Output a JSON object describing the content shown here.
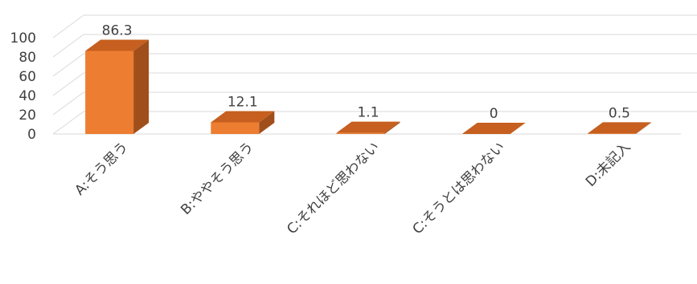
{
  "chart_data": {
    "type": "bar",
    "style": "3d-column",
    "categories": [
      "A:そう思う",
      "B:ややそう思う",
      "C:それほど思わない",
      "C:そうとは思わない",
      "D:未記入"
    ],
    "values": [
      86.3,
      12.1,
      1.1,
      0,
      0.5
    ],
    "data_labels": [
      "86.3",
      "12.1",
      "1.1",
      "0",
      "0.5"
    ],
    "yticks": [
      "0",
      "20",
      "40",
      "60",
      "80",
      "100"
    ],
    "ylim": [
      0,
      100
    ],
    "grid": true,
    "legend": "none",
    "colors": {
      "bar_front": "#ED7D31",
      "bar_top": "#C65F1F",
      "bar_side": "#A04F1B",
      "grid": "#D9D9D9",
      "text": "#404040"
    }
  }
}
